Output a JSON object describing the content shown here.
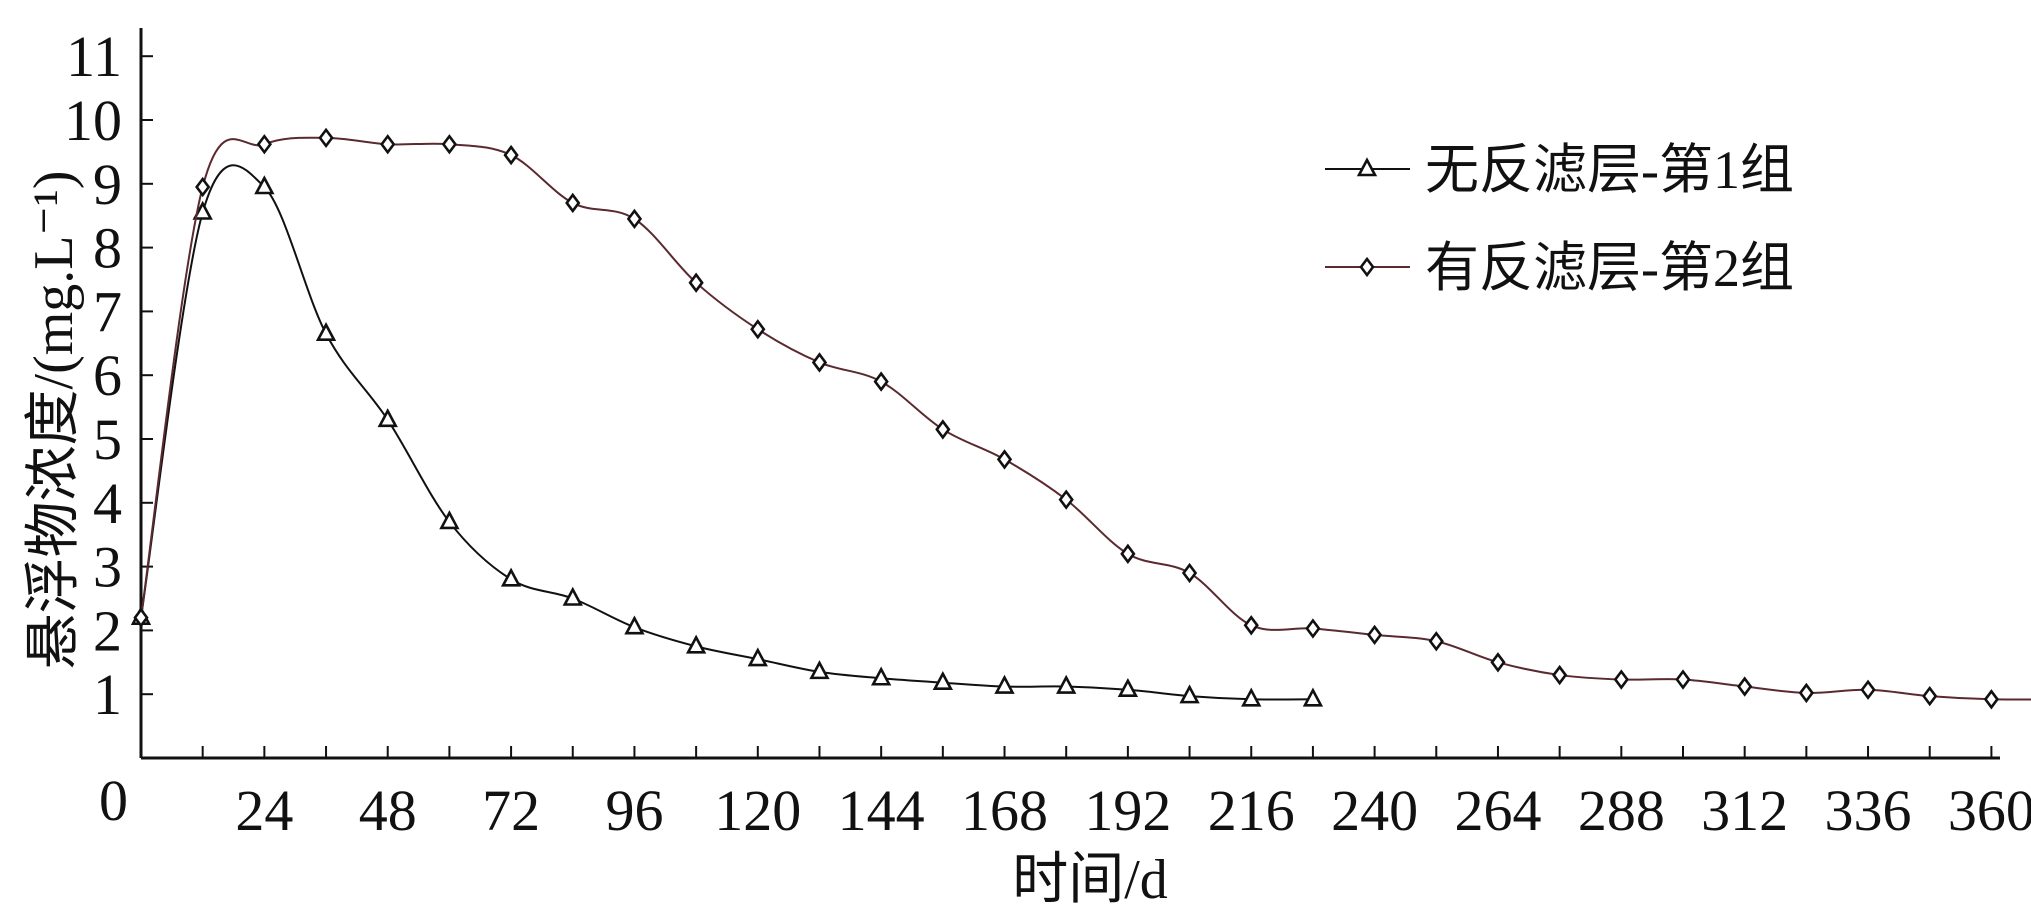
{
  "chart_data": {
    "type": "line",
    "title": "",
    "xlabel": "时间/d",
    "ylabel": "悬浮物浓度/(mg.L⁻¹)",
    "xlim": [
      0,
      372
    ],
    "ylim": [
      0,
      11
    ],
    "x_ticks": [
      24,
      48,
      72,
      96,
      120,
      144,
      168,
      192,
      216,
      240,
      264,
      288,
      312,
      336,
      360
    ],
    "y_ticks": [
      0,
      1,
      2,
      3,
      4,
      5,
      6,
      7,
      8,
      9,
      10,
      11
    ],
    "legend_position": "top-right",
    "grid": false,
    "series": [
      {
        "name": "无反滤层-第1组",
        "marker": "triangle",
        "color": "#111111",
        "x": [
          0,
          12,
          24,
          36,
          48,
          60,
          72,
          84,
          96,
          108,
          120,
          132,
          144,
          156,
          168,
          180,
          192,
          204,
          216,
          228
        ],
        "y": [
          2.2,
          8.55,
          8.95,
          6.65,
          5.3,
          3.7,
          2.8,
          2.5,
          2.05,
          1.75,
          1.55,
          1.35,
          1.25,
          1.18,
          1.12,
          1.12,
          1.07,
          0.97,
          0.92,
          0.92
        ]
      },
      {
        "name": "有反滤层-第2组",
        "marker": "diamond",
        "color": "#5a2a2e",
        "x": [
          0,
          12,
          24,
          36,
          48,
          60,
          72,
          84,
          96,
          108,
          120,
          132,
          144,
          156,
          168,
          180,
          192,
          204,
          216,
          228,
          240,
          252,
          264,
          276,
          288,
          300,
          312,
          324,
          336,
          348,
          360,
          372
        ],
        "y": [
          2.2,
          8.95,
          9.62,
          9.72,
          9.62,
          9.62,
          9.45,
          8.7,
          8.45,
          7.45,
          6.72,
          6.2,
          5.9,
          5.15,
          4.68,
          4.05,
          3.2,
          2.9,
          2.08,
          2.03,
          1.93,
          1.83,
          1.5,
          1.3,
          1.23,
          1.23,
          1.12,
          1.02,
          1.07,
          0.97,
          0.92,
          0.92
        ]
      }
    ]
  }
}
